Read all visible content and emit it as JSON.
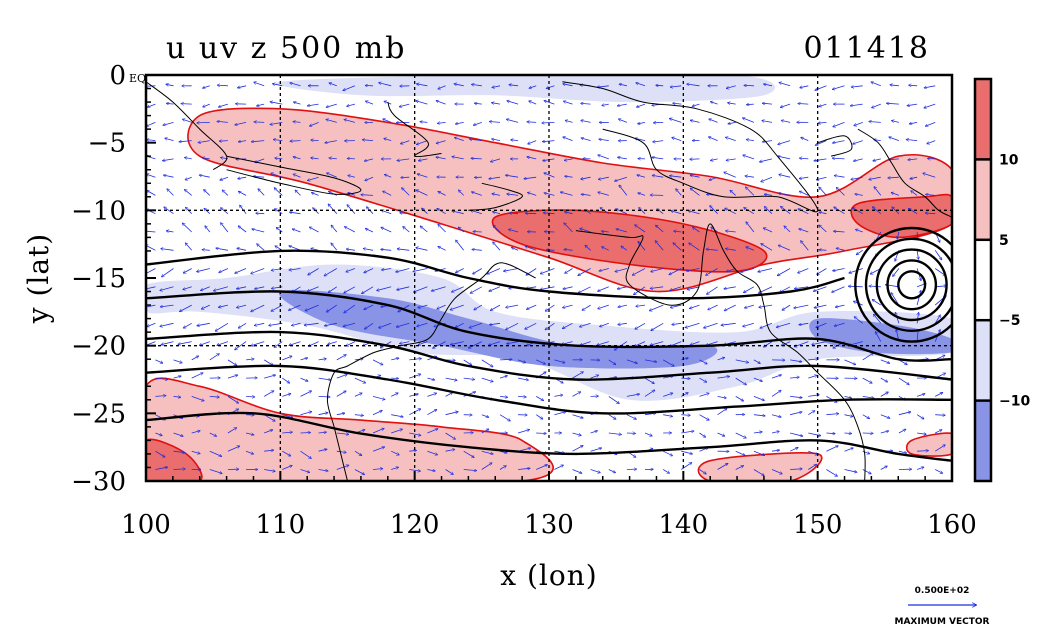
{
  "chart_data": {
    "type": "heatmap",
    "title": "u uv z 500 mb",
    "timestamp": "011418",
    "xlabel": "x (lon)",
    "ylabel": "y (lat)",
    "xlim": [
      100,
      160
    ],
    "ylim": [
      -30,
      0
    ],
    "x_ticks": [
      "100",
      "110",
      "120",
      "130",
      "140",
      "150",
      "160"
    ],
    "y_ticks": [
      "0",
      "−5",
      "−10",
      "−15",
      "−20",
      "−25",
      "−30"
    ],
    "y_top_tick_suffix": "EQ",
    "grid": true,
    "colorbar": {
      "bins": [
        {
          "range": "> 10",
          "color": "#ea6e6e"
        },
        {
          "range": "5 to 10",
          "color": "#f6c0c0"
        },
        {
          "range": "-5 to 5",
          "color": "#ffffff"
        },
        {
          "range": "-10 to -5",
          "color": "#dde0f6"
        },
        {
          "range": "< -10",
          "color": "#8a94e6"
        }
      ],
      "labels": [
        "10",
        "5",
        "−5",
        "−10"
      ]
    },
    "shaded_regions": [
      {
        "name": "positive-band-north",
        "level": 5,
        "color": "#f6c0c0",
        "lonlat": [
          [
            104,
            -3
          ],
          [
            110,
            -2.5
          ],
          [
            118,
            -3.5
          ],
          [
            126,
            -5
          ],
          [
            134,
            -6.5
          ],
          [
            142,
            -7.5
          ],
          [
            150,
            -9
          ],
          [
            156,
            -6
          ],
          [
            160,
            -7
          ],
          [
            160,
            -11
          ],
          [
            152,
            -13
          ],
          [
            146,
            -14
          ],
          [
            138,
            -16
          ],
          [
            130,
            -13.5
          ],
          [
            122,
            -11
          ],
          [
            112,
            -8
          ],
          [
            104,
            -6
          ]
        ]
      },
      {
        "name": "positive-core-north",
        "level": 10,
        "color": "#ea6e6e",
        "lonlat": [
          [
            126,
            -10.5
          ],
          [
            132,
            -10
          ],
          [
            140,
            -11
          ],
          [
            146,
            -13
          ],
          [
            144,
            -14.5
          ],
          [
            136,
            -14
          ],
          [
            128,
            -12.5
          ]
        ]
      },
      {
        "name": "positive-core-east",
        "level": 10,
        "color": "#ea6e6e",
        "lonlat": [
          [
            153,
            -9.5
          ],
          [
            158,
            -9
          ],
          [
            160,
            -9
          ],
          [
            160,
            -11
          ],
          [
            156,
            -12
          ],
          [
            153,
            -11
          ]
        ]
      },
      {
        "name": "negative-band-diagonal",
        "level": -5,
        "color": "#dde0f6",
        "lonlat": [
          [
            100,
            -15.5
          ],
          [
            106,
            -15
          ],
          [
            114,
            -14
          ],
          [
            122,
            -15
          ],
          [
            126,
            -17.5
          ],
          [
            134,
            -18.5
          ],
          [
            144,
            -19
          ],
          [
            150,
            -17.5
          ],
          [
            160,
            -18
          ],
          [
            160,
            -20.5
          ],
          [
            150,
            -21
          ],
          [
            144,
            -23
          ],
          [
            136,
            -24
          ],
          [
            128,
            -21
          ],
          [
            120,
            -20.5
          ],
          [
            112,
            -18.5
          ],
          [
            104,
            -17.5
          ],
          [
            100,
            -17.5
          ]
        ]
      },
      {
        "name": "negative-core-diagonal",
        "level": -10,
        "color": "#8a94e6",
        "lonlat": [
          [
            110,
            -16
          ],
          [
            118,
            -16.5
          ],
          [
            124,
            -18
          ],
          [
            132,
            -20
          ],
          [
            142,
            -20
          ],
          [
            140,
            -21.5
          ],
          [
            130,
            -21.5
          ],
          [
            122,
            -20
          ],
          [
            114,
            -18.5
          ]
        ]
      },
      {
        "name": "negative-core-east",
        "level": -10,
        "color": "#8a94e6",
        "lonlat": [
          [
            150,
            -18
          ],
          [
            156,
            -18.5
          ],
          [
            160,
            -19.5
          ],
          [
            160,
            -20.5
          ],
          [
            154,
            -20.5
          ],
          [
            150,
            -19.5
          ]
        ]
      },
      {
        "name": "negative-top",
        "level": -5,
        "color": "#dde0f6",
        "lonlat": [
          [
            110,
            -0.5
          ],
          [
            126,
            0
          ],
          [
            144,
            0
          ],
          [
            146,
            -1.5
          ],
          [
            136,
            -2
          ],
          [
            126,
            -1.5
          ],
          [
            116,
            -1.5
          ]
        ]
      },
      {
        "name": "positive-band-south",
        "level": 5,
        "color": "#f6c0c0",
        "lonlat": [
          [
            100,
            -23
          ],
          [
            104,
            -23
          ],
          [
            110,
            -25
          ],
          [
            116,
            -25.5
          ],
          [
            122,
            -26
          ],
          [
            128,
            -27
          ],
          [
            128,
            -30
          ],
          [
            100,
            -30
          ]
        ]
      },
      {
        "name": "positive-core-south",
        "level": 10,
        "color": "#ea6e6e",
        "lonlat": [
          [
            100,
            -27
          ],
          [
            103,
            -28
          ],
          [
            104,
            -30
          ],
          [
            100,
            -30
          ]
        ]
      },
      {
        "name": "positive-south-east",
        "level": 5,
        "color": "#f6c0c0",
        "lonlat": [
          [
            142,
            -28.5
          ],
          [
            150,
            -28
          ],
          [
            148,
            -30
          ],
          [
            142,
            -30
          ]
        ]
      },
      {
        "name": "positive-south-far-east",
        "level": 5,
        "color": "#f6c0c0",
        "lonlat": [
          [
            157,
            -27
          ],
          [
            160,
            -26.5
          ],
          [
            160,
            -28
          ],
          [
            157,
            -28
          ]
        ]
      }
    ],
    "height_contours": [
      {
        "name": "z-contour-1",
        "lonlat": [
          [
            100,
            -14
          ],
          [
            110,
            -13
          ],
          [
            118,
            -13.5
          ],
          [
            124,
            -15
          ],
          [
            130,
            -16
          ],
          [
            140,
            -16.5
          ],
          [
            148,
            -16
          ],
          [
            152,
            -15
          ]
        ]
      },
      {
        "name": "z-contour-2",
        "lonlat": [
          [
            100,
            -16.5
          ],
          [
            110,
            -16
          ],
          [
            118,
            -17
          ],
          [
            124,
            -19
          ],
          [
            132,
            -20
          ],
          [
            142,
            -20
          ],
          [
            150,
            -19.5
          ],
          [
            156,
            -21
          ],
          [
            160,
            -21
          ]
        ]
      },
      {
        "name": "z-contour-3",
        "lonlat": [
          [
            100,
            -19.5
          ],
          [
            110,
            -19
          ],
          [
            118,
            -20
          ],
          [
            124,
            -21.5
          ],
          [
            132,
            -22.5
          ],
          [
            142,
            -22
          ],
          [
            150,
            -21.5
          ],
          [
            160,
            -22.5
          ]
        ]
      },
      {
        "name": "z-contour-4",
        "lonlat": [
          [
            100,
            -22
          ],
          [
            110,
            -21.5
          ],
          [
            118,
            -22.5
          ],
          [
            126,
            -24
          ],
          [
            134,
            -25
          ],
          [
            144,
            -24.5
          ],
          [
            152,
            -24
          ],
          [
            160,
            -24
          ]
        ]
      },
      {
        "name": "z-contour-5",
        "lonlat": [
          [
            100,
            -25.5
          ],
          [
            108,
            -25
          ],
          [
            116,
            -26.5
          ],
          [
            124,
            -27.5
          ],
          [
            132,
            -28
          ],
          [
            142,
            -27.5
          ],
          [
            150,
            -27
          ],
          [
            156,
            -28
          ],
          [
            160,
            -28.5
          ]
        ]
      }
    ],
    "cyclone_center": [
      157,
      -15.5
    ],
    "cyclone_rings_deg": [
      1.0,
      1.8,
      2.6,
      3.4,
      4.2
    ],
    "vector_reference": {
      "value_label": "0.500E+02",
      "caption": "MAXIMUM VECTOR"
    }
  }
}
